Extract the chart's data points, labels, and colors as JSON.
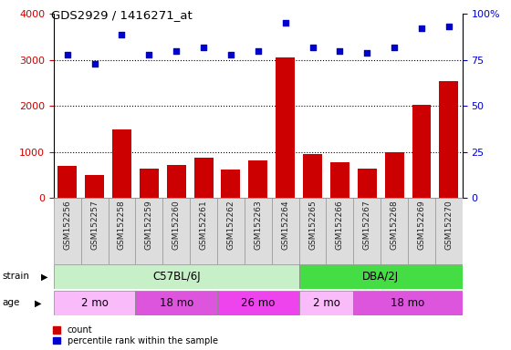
{
  "title": "GDS2929 / 1416271_at",
  "samples": [
    "GSM152256",
    "GSM152257",
    "GSM152258",
    "GSM152259",
    "GSM152260",
    "GSM152261",
    "GSM152262",
    "GSM152263",
    "GSM152264",
    "GSM152265",
    "GSM152266",
    "GSM152267",
    "GSM152268",
    "GSM152269",
    "GSM152270"
  ],
  "counts": [
    700,
    490,
    1490,
    640,
    710,
    880,
    620,
    810,
    3060,
    960,
    770,
    640,
    1000,
    2030,
    2540
  ],
  "percentiles": [
    78,
    73,
    89,
    78,
    80,
    82,
    78,
    80,
    95,
    82,
    80,
    79,
    82,
    92,
    93
  ],
  "bar_color": "#cc0000",
  "dot_color": "#0000cc",
  "ylim_left": [
    0,
    4000
  ],
  "ylim_right": [
    0,
    100
  ],
  "yticks_left": [
    0,
    1000,
    2000,
    3000,
    4000
  ],
  "yticks_right": [
    0,
    25,
    50,
    75,
    100
  ],
  "grid_values": [
    1000,
    2000,
    3000
  ],
  "strain_groups": [
    {
      "label": "C57BL/6J",
      "start": 0,
      "end": 9,
      "color": "#c8f0c8"
    },
    {
      "label": "DBA/2J",
      "start": 9,
      "end": 15,
      "color": "#44dd44"
    }
  ],
  "age_groups": [
    {
      "label": "2 mo",
      "start": 0,
      "end": 3,
      "color": "#f9bbf9"
    },
    {
      "label": "18 mo",
      "start": 3,
      "end": 6,
      "color": "#dd55dd"
    },
    {
      "label": "26 mo",
      "start": 6,
      "end": 9,
      "color": "#ee44ee"
    },
    {
      "label": "2 mo",
      "start": 9,
      "end": 11,
      "color": "#f9bbf9"
    },
    {
      "label": "18 mo",
      "start": 11,
      "end": 15,
      "color": "#dd55dd"
    }
  ],
  "bg_color": "#ffffff"
}
